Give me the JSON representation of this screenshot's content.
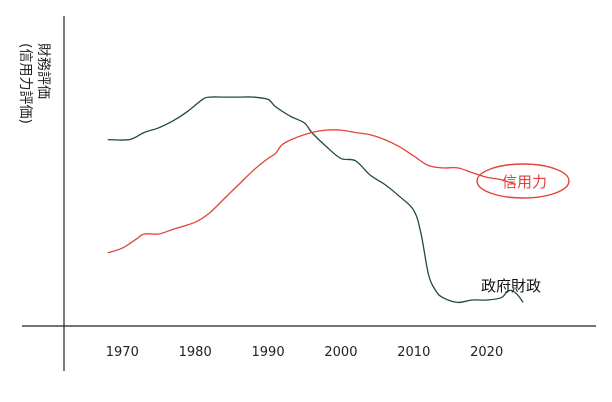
{
  "chart_data": {
    "type": "line",
    "ylabel_main": "財務評価",
    "ylabel_sub": "(信用力評価)",
    "x_ticks": [
      1970,
      1980,
      1990,
      2000,
      2010,
      2020
    ],
    "xlim": [
      1962,
      2035
    ],
    "ylim": [
      0,
      100
    ],
    "grid": false,
    "series": [
      {
        "name": "政府財政",
        "color": "#1f4d3a",
        "x": [
          1968,
          1971,
          1973,
          1975,
          1977,
          1979,
          1981,
          1982,
          1984,
          1986,
          1988,
          1990,
          1991,
          1993,
          1995,
          1996,
          1998,
          2000,
          2002,
          2004,
          2006,
          2008,
          2010,
          2011,
          2012,
          2013,
          2014,
          2016,
          2018,
          2020,
          2022,
          2023,
          2024,
          2025
        ],
        "values": [
          79,
          79,
          82,
          84,
          87,
          91,
          96,
          97,
          97,
          97,
          97,
          96,
          93,
          89,
          86,
          82,
          76,
          71,
          70,
          64,
          60,
          55,
          49,
          39,
          22,
          15,
          12,
          10,
          11,
          11,
          12,
          15,
          14,
          10
        ]
      },
      {
        "name": "信用力",
        "color": "#e2433a",
        "x": [
          1968,
          1970,
          1972,
          1973,
          1975,
          1977,
          1980,
          1982,
          1984,
          1986,
          1988,
          1990,
          1991,
          1992,
          1994,
          1996,
          1998,
          2000,
          2002,
          2004,
          2006,
          2008,
          2010,
          2012,
          2014,
          2016,
          2018,
          2020,
          2022,
          2024
        ],
        "values": [
          31,
          33,
          37,
          39,
          39,
          41,
          44,
          48,
          54,
          60,
          66,
          71,
          73,
          77,
          80,
          82,
          83,
          83,
          82,
          81,
          79,
          76,
          72,
          68,
          67,
          67,
          65,
          63,
          62,
          60
        ]
      }
    ]
  }
}
